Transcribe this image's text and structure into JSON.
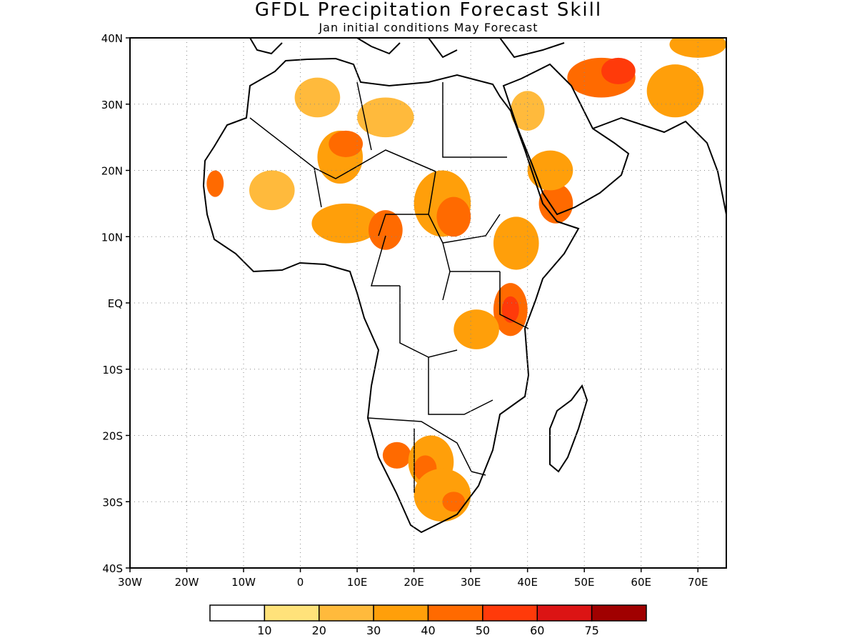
{
  "title": "GFDL Precipitation Forecast Skill",
  "subtitle": "Jan initial conditions  May Forecast",
  "map": {
    "lon_range": [
      -30,
      75
    ],
    "lat_range": [
      -40,
      40
    ],
    "lat_ticks": [
      {
        "value": 40,
        "label": "40N"
      },
      {
        "value": 30,
        "label": "30N"
      },
      {
        "value": 20,
        "label": "20N"
      },
      {
        "value": 10,
        "label": "10N"
      },
      {
        "value": 0,
        "label": "EQ"
      },
      {
        "value": -10,
        "label": "10S"
      },
      {
        "value": -20,
        "label": "20S"
      },
      {
        "value": -30,
        "label": "30S"
      },
      {
        "value": -40,
        "label": "40S"
      }
    ],
    "lon_ticks": [
      {
        "value": -30,
        "label": "30W"
      },
      {
        "value": -20,
        "label": "20W"
      },
      {
        "value": -10,
        "label": "10W"
      },
      {
        "value": 0,
        "label": "0"
      },
      {
        "value": 10,
        "label": "10E"
      },
      {
        "value": 20,
        "label": "20E"
      },
      {
        "value": 30,
        "label": "30E"
      },
      {
        "value": 40,
        "label": "40E"
      },
      {
        "value": 50,
        "label": "50E"
      },
      {
        "value": 60,
        "label": "60E"
      },
      {
        "value": 70,
        "label": "70E"
      }
    ],
    "grid": true
  },
  "colorbar": {
    "colors": [
      "#ffffff",
      "#ffe27a",
      "#ffba3c",
      "#ff9f0a",
      "#ff6a00",
      "#ff3a0a",
      "#dc1414",
      "#a00000"
    ],
    "labels": [
      "10",
      "20",
      "30",
      "40",
      "50",
      "60",
      "75"
    ]
  },
  "skill_regions": [
    {
      "name": "morocco-algeria",
      "lon": 3,
      "lat": 31,
      "rx": 4,
      "ry": 3,
      "level": 2
    },
    {
      "name": "niger-north",
      "lon": 7,
      "lat": 22,
      "rx": 4,
      "ry": 4,
      "level": 3
    },
    {
      "name": "algeria-south",
      "lon": 8,
      "lat": 24,
      "rx": 3,
      "ry": 2,
      "level": 4
    },
    {
      "name": "libya",
      "lon": 15,
      "lat": 28,
      "rx": 5,
      "ry": 3,
      "level": 2
    },
    {
      "name": "mali",
      "lon": -5,
      "lat": 17,
      "rx": 4,
      "ry": 3,
      "level": 2
    },
    {
      "name": "senegal",
      "lon": -15,
      "lat": 18,
      "rx": 1.5,
      "ry": 2,
      "level": 4
    },
    {
      "name": "nigeria",
      "lon": 8,
      "lat": 12,
      "rx": 6,
      "ry": 3,
      "level": 3
    },
    {
      "name": "cameroon",
      "lon": 15,
      "lat": 11,
      "rx": 3,
      "ry": 3,
      "level": 4
    },
    {
      "name": "sudan-chad",
      "lon": 25,
      "lat": 15,
      "rx": 5,
      "ry": 5,
      "level": 3
    },
    {
      "name": "darfur",
      "lon": 27,
      "lat": 13,
      "rx": 3,
      "ry": 3,
      "level": 4
    },
    {
      "name": "ethiopia",
      "lon": 38,
      "lat": 9,
      "rx": 4,
      "ry": 4,
      "level": 3
    },
    {
      "name": "yemen",
      "lon": 45,
      "lat": 15,
      "rx": 3,
      "ry": 3,
      "level": 4
    },
    {
      "name": "saudi",
      "lon": 44,
      "lat": 20,
      "rx": 4,
      "ry": 3,
      "level": 3
    },
    {
      "name": "saudi-north",
      "lon": 40,
      "lat": 29,
      "rx": 3,
      "ry": 3,
      "level": 2
    },
    {
      "name": "iran",
      "lon": 53,
      "lat": 34,
      "rx": 6,
      "ry": 3,
      "level": 4
    },
    {
      "name": "iran-core",
      "lon": 56,
      "lat": 35,
      "rx": 3,
      "ry": 2,
      "level": 5
    },
    {
      "name": "afghanistan",
      "lon": 66,
      "lat": 32,
      "rx": 5,
      "ry": 4,
      "level": 3
    },
    {
      "name": "med-north",
      "lon": 70,
      "lat": 39,
      "rx": 5,
      "ry": 2,
      "level": 3
    },
    {
      "name": "kenya",
      "lon": 37,
      "lat": -1,
      "rx": 3,
      "ry": 4,
      "level": 4
    },
    {
      "name": "kenya-core",
      "lon": 37,
      "lat": -1,
      "rx": 1.5,
      "ry": 2,
      "level": 5
    },
    {
      "name": "tanzania",
      "lon": 31,
      "lat": -4,
      "rx": 4,
      "ry": 3,
      "level": 3
    },
    {
      "name": "namibia",
      "lon": 17,
      "lat": -23,
      "rx": 2.5,
      "ry": 2,
      "level": 4
    },
    {
      "name": "botswana",
      "lon": 23,
      "lat": -24,
      "rx": 4,
      "ry": 4,
      "level": 3
    },
    {
      "name": "botswana-core",
      "lon": 22,
      "lat": -25,
      "rx": 2,
      "ry": 2,
      "level": 4
    },
    {
      "name": "south-africa",
      "lon": 25,
      "lat": -29,
      "rx": 5,
      "ry": 4,
      "level": 3
    },
    {
      "name": "lesotho",
      "lon": 27,
      "lat": -30,
      "rx": 2,
      "ry": 1.5,
      "level": 4
    }
  ]
}
